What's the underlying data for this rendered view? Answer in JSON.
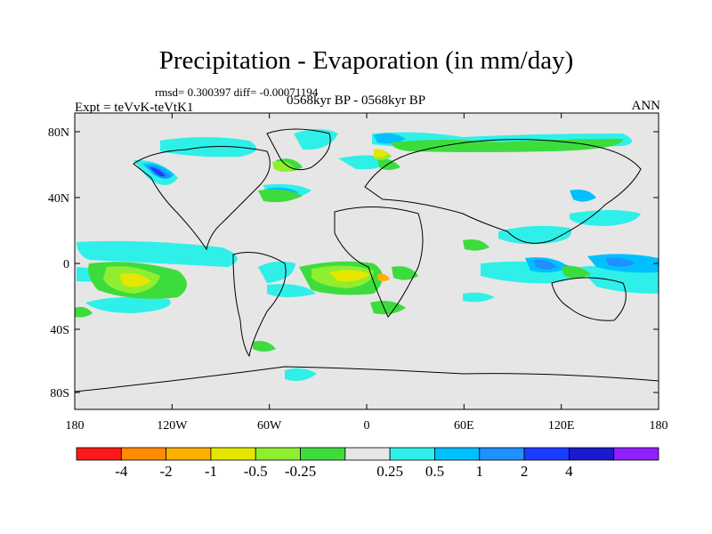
{
  "title": "Precipitation - Evaporation (in mm/day)",
  "stats": "rmsd= 0.300397 diff= -0.00071194",
  "expt": "Expt = teVvK-teVtK1",
  "period": "0568kyr BP - 0568kyr BP",
  "season": "ANN",
  "axes": {
    "lon_ticks": [
      "180",
      "120W",
      "60W",
      "0",
      "60E",
      "120E",
      "180"
    ],
    "lat_ticks": [
      "80N",
      "40N",
      "0",
      "40S",
      "80S"
    ]
  },
  "colorbar": {
    "colors": [
      "#ff1a1a",
      "#ff8c00",
      "#ffb000",
      "#e6e600",
      "#90ee30",
      "#3ddc3d",
      "#e6e6e6",
      "#2ff0e8",
      "#00c0ff",
      "#1e90ff",
      "#1a3cff",
      "#1a1acc",
      "#9020ff"
    ],
    "labels": [
      "-4",
      "-2",
      "-1",
      "-0.5",
      "-0.25",
      "0.25",
      "0.5",
      "1",
      "2",
      "4"
    ]
  },
  "colors": {
    "background_field": "#e6e6e6",
    "coastline": "#000000"
  }
}
